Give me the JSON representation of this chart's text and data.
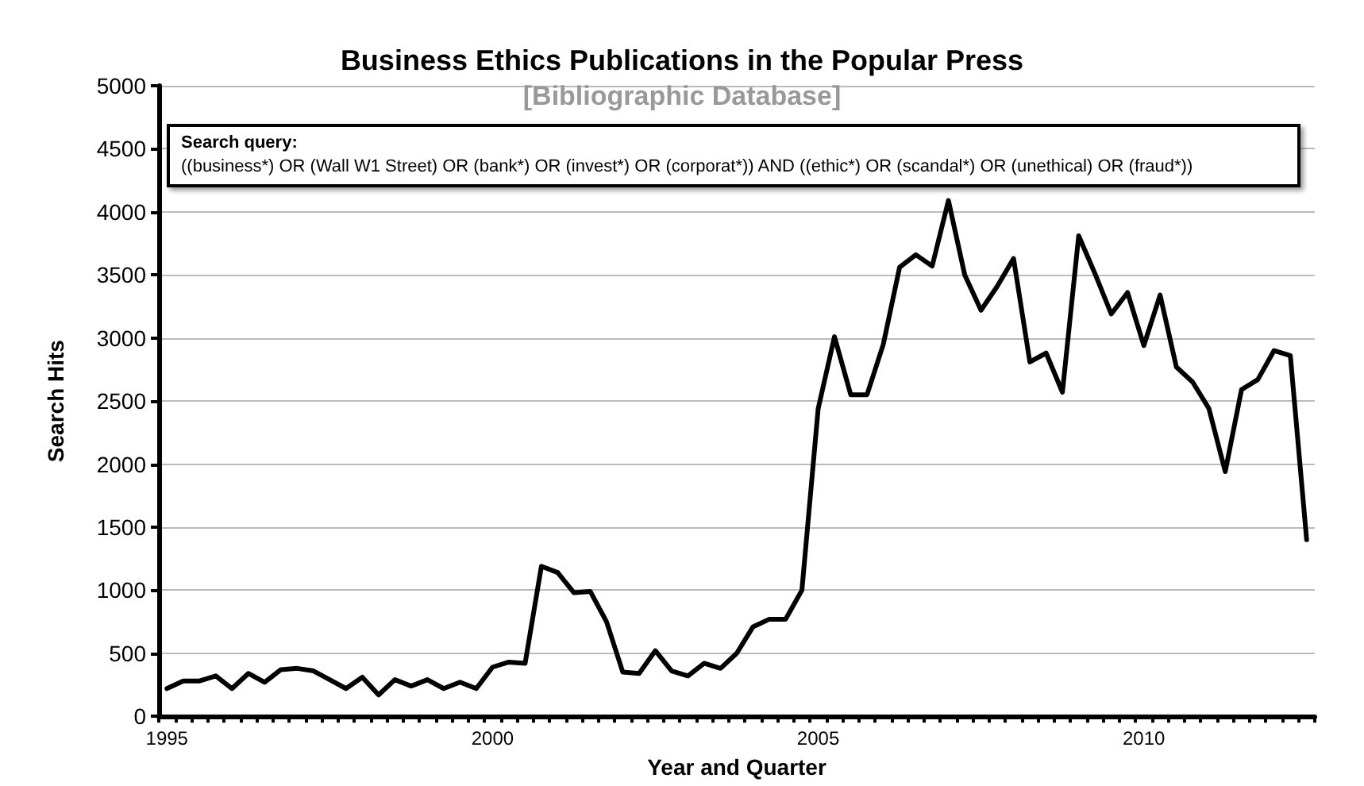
{
  "chart_data": {
    "type": "line",
    "title": "Business Ethics Publications in the Popular Press",
    "subtitle": "[Bibliographic Database]",
    "xlabel": "Year and Quarter",
    "ylabel": "Search Hits",
    "annotations": [
      "Search query:",
      "((business*) OR (Wall W1 Street) OR (bank*) OR (invest*) OR (corporat*)) AND ((ethic*) OR (scandal*) OR (unethical) OR (fraud*))"
    ],
    "categories": [
      "1995",
      null,
      null,
      null,
      null,
      null,
      null,
      null,
      null,
      null,
      null,
      null,
      null,
      null,
      null,
      null,
      null,
      null,
      null,
      null,
      "2000",
      null,
      null,
      null,
      null,
      null,
      null,
      null,
      null,
      null,
      null,
      null,
      null,
      null,
      null,
      null,
      null,
      null,
      null,
      null,
      "2005",
      null,
      null,
      null,
      null,
      null,
      null,
      null,
      null,
      null,
      null,
      null,
      null,
      null,
      null,
      null,
      null,
      null,
      null,
      null,
      "2010",
      null,
      null,
      null,
      null,
      null,
      null,
      null,
      null,
      null,
      null
    ],
    "series": [
      {
        "color": "#000000",
        "values": [
          220,
          280,
          280,
          320,
          220,
          340,
          270,
          370,
          380,
          360,
          290,
          220,
          310,
          170,
          290,
          240,
          290,
          220,
          270,
          220,
          390,
          430,
          420,
          1190,
          1140,
          980,
          990,
          750,
          350,
          340,
          520,
          360,
          320,
          420,
          380,
          500,
          710,
          770,
          770,
          1000,
          2440,
          3010,
          2550,
          2550,
          2950,
          3560,
          3660,
          3570,
          4090,
          3500,
          3220,
          3410,
          3630,
          2810,
          2880,
          2570,
          3810,
          3510,
          3190,
          3360,
          2940,
          3340,
          2770,
          2650,
          2440,
          1940,
          2590,
          2670,
          2900,
          2860,
          1400
        ]
      }
    ],
    "ylim": [
      0,
      5000
    ],
    "yticks": [
      0,
      500,
      1000,
      1500,
      2000,
      2500,
      3000,
      3500,
      4000,
      4500,
      5000
    ],
    "grid": "y",
    "marker": "none",
    "line_style": "solid"
  }
}
